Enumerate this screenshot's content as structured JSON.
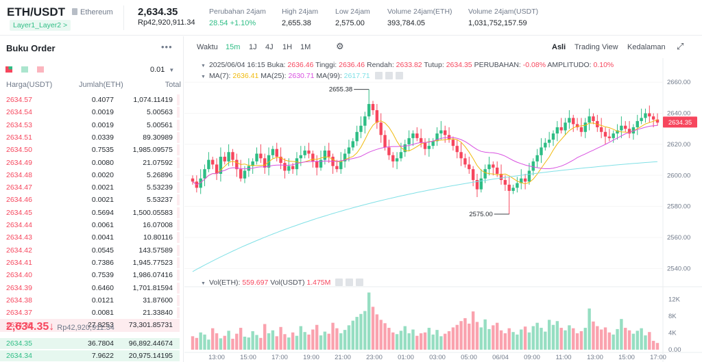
{
  "header": {
    "pair": "ETH/USDT",
    "coin_name": "Ethereum",
    "tag": "Layer1_Layer2 >",
    "last_price": "2,634.35",
    "last_price_fiat": "Rp42,920,911.34",
    "stats": [
      {
        "label": "Perubahan 24jam",
        "value": "28.54 +1.10%",
        "positive": true
      },
      {
        "label": "High 24jam",
        "value": "2,655.38"
      },
      {
        "label": "Low 24jam",
        "value": "2,575.00"
      },
      {
        "label": "Volume 24jam(ETH)",
        "value": "393,784.05"
      },
      {
        "label": "Volume 24jam(USDT)",
        "value": "1,031,752,157.59"
      }
    ]
  },
  "orderbook": {
    "title": "Buku Order",
    "precision": "0.01",
    "col_price": "Harga(USDT)",
    "col_amount": "Jumlah(ETH)",
    "col_total": "Total",
    "asks": [
      {
        "price": "2634.57",
        "amount": "0.4077",
        "total": "1,074.11419",
        "depth": 0.02
      },
      {
        "price": "2634.54",
        "amount": "0.0019",
        "total": "5.00563",
        "depth": 0.01
      },
      {
        "price": "2634.53",
        "amount": "0.0019",
        "total": "5.00561",
        "depth": 0.01
      },
      {
        "price": "2634.51",
        "amount": "0.0339",
        "total": "89.30989",
        "depth": 0.01
      },
      {
        "price": "2634.50",
        "amount": "0.7535",
        "total": "1,985.09575",
        "depth": 0.03
      },
      {
        "price": "2634.49",
        "amount": "0.0080",
        "total": "21.07592",
        "depth": 0.01
      },
      {
        "price": "2634.48",
        "amount": "0.0020",
        "total": "5.26896",
        "depth": 0.01
      },
      {
        "price": "2634.47",
        "amount": "0.0021",
        "total": "5.53239",
        "depth": 0.01
      },
      {
        "price": "2634.46",
        "amount": "0.0021",
        "total": "5.53237",
        "depth": 0.01
      },
      {
        "price": "2634.45",
        "amount": "0.5694",
        "total": "1,500.05583",
        "depth": 0.03
      },
      {
        "price": "2634.44",
        "amount": "0.0061",
        "total": "16.07008",
        "depth": 0.01
      },
      {
        "price": "2634.43",
        "amount": "0.0041",
        "total": "10.80116",
        "depth": 0.01
      },
      {
        "price": "2634.42",
        "amount": "0.0545",
        "total": "143.57589",
        "depth": 0.01
      },
      {
        "price": "2634.41",
        "amount": "0.7386",
        "total": "1,945.77523",
        "depth": 0.03
      },
      {
        "price": "2634.40",
        "amount": "0.7539",
        "total": "1,986.07416",
        "depth": 0.03
      },
      {
        "price": "2634.39",
        "amount": "0.6460",
        "total": "1,701.81594",
        "depth": 0.03
      },
      {
        "price": "2634.38",
        "amount": "0.0121",
        "total": "31.87600",
        "depth": 0.01
      },
      {
        "price": "2634.37",
        "amount": "0.0081",
        "total": "21.33840",
        "depth": 0.01
      },
      {
        "price": "2634.36",
        "amount": "27.8253",
        "total": "73,301.85731",
        "depth": 1.0
      }
    ],
    "mid_price": "2,634.35",
    "mid_arrow": "↓",
    "mid_fiat": "Rp42,920,911.34",
    "bids": [
      {
        "price": "2634.35",
        "amount": "36.7804",
        "total": "96,892.44674",
        "depth": 1.0
      },
      {
        "price": "2634.34",
        "amount": "7.9622",
        "total": "20,975.14195",
        "depth": 1.0
      }
    ]
  },
  "toolbar": {
    "time_label": "Waktu",
    "intervals": [
      "15m",
      "1J",
      "4J",
      "1H",
      "1M"
    ],
    "active_interval": "15m",
    "views": [
      "Asli",
      "Trading View",
      "Kedalaman"
    ],
    "active_view": "Asli"
  },
  "legend": {
    "datetime": "2025/06/04 16:15",
    "open_label": "Buka:",
    "open": "2636.46",
    "high_label": "Tinggi:",
    "high": "2636.46",
    "low_label": "Rendah:",
    "low": "2633.82",
    "close_label": "Tutup:",
    "close": "2634.35",
    "change_label": "PERUBAHAN:",
    "change": "-0.08%",
    "amp_label": "AMPLITUDO:",
    "amp": "0.10%",
    "ma7_label": "MA(7):",
    "ma7": "2636.41",
    "ma25_label": "MA(25):",
    "ma25": "2630.71",
    "ma99_label": "MA(99):",
    "ma99": "2617.71",
    "vol_eth_label": "Vol(ETH):",
    "vol_eth": "559.697",
    "vol_usdt_label": "Vol(USDT)",
    "vol_usdt": "1.475M"
  },
  "colors": {
    "up": "#2ebd85",
    "down": "#f6465d",
    "ma7": "#f0b90b",
    "ma25": "#d84fe0",
    "ma99": "#7fe0e6"
  },
  "chart_data": {
    "type": "candlestick",
    "y_ticks": [
      2540,
      2560,
      2580,
      2600,
      2620,
      2640,
      2660
    ],
    "y_tick_labels": [
      "2540.00",
      "2560.00",
      "2580.00",
      "2600.00",
      "2620.00",
      "2640.00",
      "2660.00"
    ],
    "ylim": [
      2530,
      2672
    ],
    "vol_ticks": [
      0,
      4000,
      8000,
      12000
    ],
    "vol_tick_labels": [
      "0.00",
      "4K",
      "8K",
      "12K"
    ],
    "vol_max": 14000,
    "x_labels": [
      "13:00",
      "15:00",
      "17:00",
      "19:00",
      "21:00",
      "23:00",
      "01:00",
      "03:00",
      "05:00",
      "06/04",
      "09:00",
      "11:00",
      "13:00",
      "15:00",
      "17:00"
    ],
    "max_annotation": "2655.38",
    "min_annotation": "2575.00",
    "last_price_label": "2634.35",
    "closes": [
      2596,
      2592,
      2598,
      2604,
      2610,
      2607,
      2601,
      2612,
      2609,
      2615,
      2610,
      2604,
      2598,
      2603,
      2606,
      2609,
      2614,
      2611,
      2605,
      2613,
      2617,
      2612,
      2608,
      2603,
      2606,
      2604,
      2611,
      2613,
      2616,
      2614,
      2609,
      2605,
      2610,
      2616,
      2612,
      2606,
      2604,
      2609,
      2614,
      2618,
      2622,
      2628,
      2632,
      2638,
      2646,
      2642,
      2634,
      2626,
      2618,
      2613,
      2609,
      2611,
      2615,
      2620,
      2624,
      2627,
      2624,
      2621,
      2617,
      2619,
      2622,
      2627,
      2629,
      2626,
      2623,
      2619,
      2615,
      2611,
      2607,
      2604,
      2597,
      2591,
      2598,
      2604,
      2607,
      2605,
      2601,
      2597,
      2594,
      2590,
      2592,
      2595,
      2598,
      2596,
      2603,
      2609,
      2613,
      2618,
      2621,
      2623,
      2627,
      2631,
      2629,
      2634,
      2637,
      2633,
      2631,
      2628,
      2634,
      2638,
      2635,
      2631,
      2628,
      2625,
      2624,
      2627,
      2629,
      2632,
      2630,
      2627,
      2631,
      2635,
      2637,
      2640,
      2638,
      2636,
      2634
    ],
    "volumes": [
      3.2,
      2.8,
      4.1,
      3.6,
      2.4,
      5.1,
      3.9,
      2.7,
      3.3,
      4.5,
      2.6,
      3.8,
      5.2,
      3.1,
      2.9,
      4.4,
      3.5,
      2.8,
      6.1,
      3.9,
      4.6,
      3.2,
      5.4,
      3.7,
      2.9,
      4.1,
      3.3,
      5.6,
      4.2,
      3.6,
      4.8,
      5.9,
      3.4,
      4.3,
      3.8,
      6.4,
      5.1,
      3.9,
      4.7,
      5.8,
      6.9,
      7.8,
      8.5,
      9.2,
      13.6,
      10.2,
      8.4,
      7.1,
      6.3,
      5.2,
      4.1,
      3.7,
      4.5,
      5.6,
      3.9,
      4.8,
      3.3,
      3.9,
      4.1,
      5.2,
      3.6,
      4.7,
      3.2,
      3.8,
      4.4,
      5.3,
      5.9,
      6.8,
      7.5,
      6.2,
      9.1,
      6.6,
      5.3,
      7.2,
      4.9,
      5.8,
      6.4,
      4.6,
      3.9,
      5.1,
      4.2,
      3.6,
      4.8,
      5.5,
      4.1,
      5.6,
      6.4,
      5.2,
      4.3,
      7.1,
      5.9,
      6.8,
      5.2,
      4.6,
      5.8,
      5.1,
      3.9,
      4.4,
      5.2,
      9.8,
      6.7,
      5.6,
      4.8,
      5.3,
      4.1,
      3.6,
      4.9,
      7.3,
      5.2,
      4.6,
      3.8,
      4.5,
      5.1,
      3.4,
      4.2,
      2.1,
      1.6
    ]
  }
}
